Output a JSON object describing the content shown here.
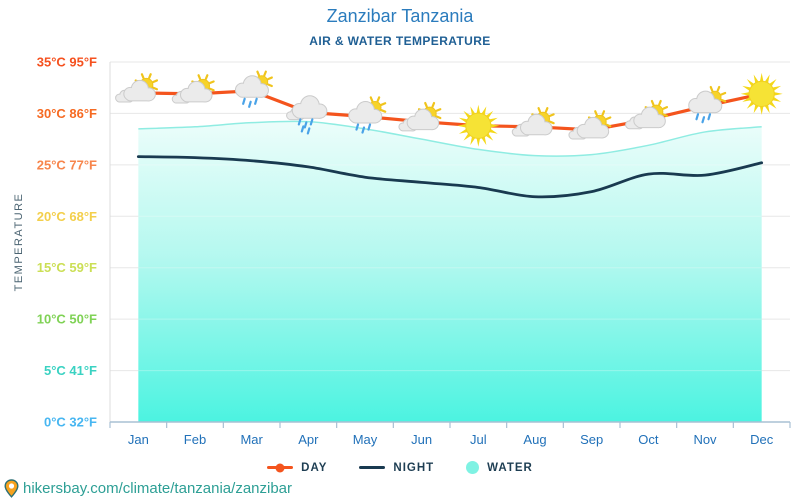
{
  "header": {
    "title": "Zanzibar Tanzania",
    "subtitle": "AIR & WATER TEMPERATURE"
  },
  "y_axis": {
    "title": "TEMPERATURE",
    "ticks": [
      {
        "temp_c": 35,
        "label": "35°C 95°F",
        "color": "#f5511f"
      },
      {
        "temp_c": 30,
        "label": "30°C 86°F",
        "color": "#f66a22"
      },
      {
        "temp_c": 25,
        "label": "25°C 77°F",
        "color": "#f7854c"
      },
      {
        "temp_c": 20,
        "label": "20°C 68°F",
        "color": "#f3cf4b"
      },
      {
        "temp_c": 15,
        "label": "15°C 59°F",
        "color": "#cbdf55"
      },
      {
        "temp_c": 10,
        "label": "10°C 50°F",
        "color": "#7fd255"
      },
      {
        "temp_c": 5,
        "label": "5°C 41°F",
        "color": "#3ad2c2"
      },
      {
        "temp_c": 0,
        "label": "0°C 32°F",
        "color": "#47b6f1"
      }
    ]
  },
  "chart_data": {
    "type": "line",
    "title": "Zanzibar Tanzania",
    "subtitle": "AIR & WATER TEMPERATURE",
    "xlabel": "",
    "ylabel": "TEMPERATURE",
    "ylim": [
      0,
      35
    ],
    "grid": true,
    "legend_position": "bottom",
    "categories": [
      "Jan",
      "Feb",
      "Mar",
      "Apr",
      "May",
      "Jun",
      "Jul",
      "Aug",
      "Sep",
      "Oct",
      "Nov",
      "Dec"
    ],
    "series": [
      {
        "name": "DAY",
        "type": "line",
        "color": "#f4541d",
        "values": [
          32.0,
          31.9,
          32.2,
          30.1,
          29.7,
          29.2,
          28.8,
          28.7,
          28.4,
          29.4,
          30.7,
          31.9
        ]
      },
      {
        "name": "NIGHT",
        "type": "line",
        "color": "#193a50",
        "values": [
          25.8,
          25.7,
          25.4,
          24.8,
          23.8,
          23.3,
          22.8,
          21.9,
          22.4,
          24.1,
          24.0,
          25.2
        ]
      },
      {
        "name": "WATER",
        "type": "area",
        "color": "#7ff2e3",
        "values": [
          28.5,
          28.7,
          29.1,
          29.2,
          28.5,
          27.5,
          26.5,
          25.9,
          26.0,
          26.9,
          28.2,
          28.7
        ]
      }
    ],
    "weather_icons": [
      "sun-cloud",
      "sun-cloud",
      "sun-cloud-rain",
      "cloud-rain",
      "sun-cloud-rain",
      "sun-cloud",
      "sun",
      "sun-cloud",
      "sun-cloud",
      "sun-cloud",
      "sun-cloud-rain",
      "sun"
    ]
  },
  "style": {
    "grid_color": "#e7e7e7",
    "axis_color": "#a9c0d4",
    "left_axis_color": "#dcdcdc",
    "x_label_color": "#2171b9",
    "y_title_color": "#4b6472",
    "water_gradient_top": "#eafdfa",
    "water_gradient_mid": "#aef8ee",
    "water_gradient_bottom": "#3cf2de",
    "water_edge_color": "#8fece2"
  },
  "footer": {
    "url": "hikersbay.com/climate/tanzania/zanzibar"
  }
}
